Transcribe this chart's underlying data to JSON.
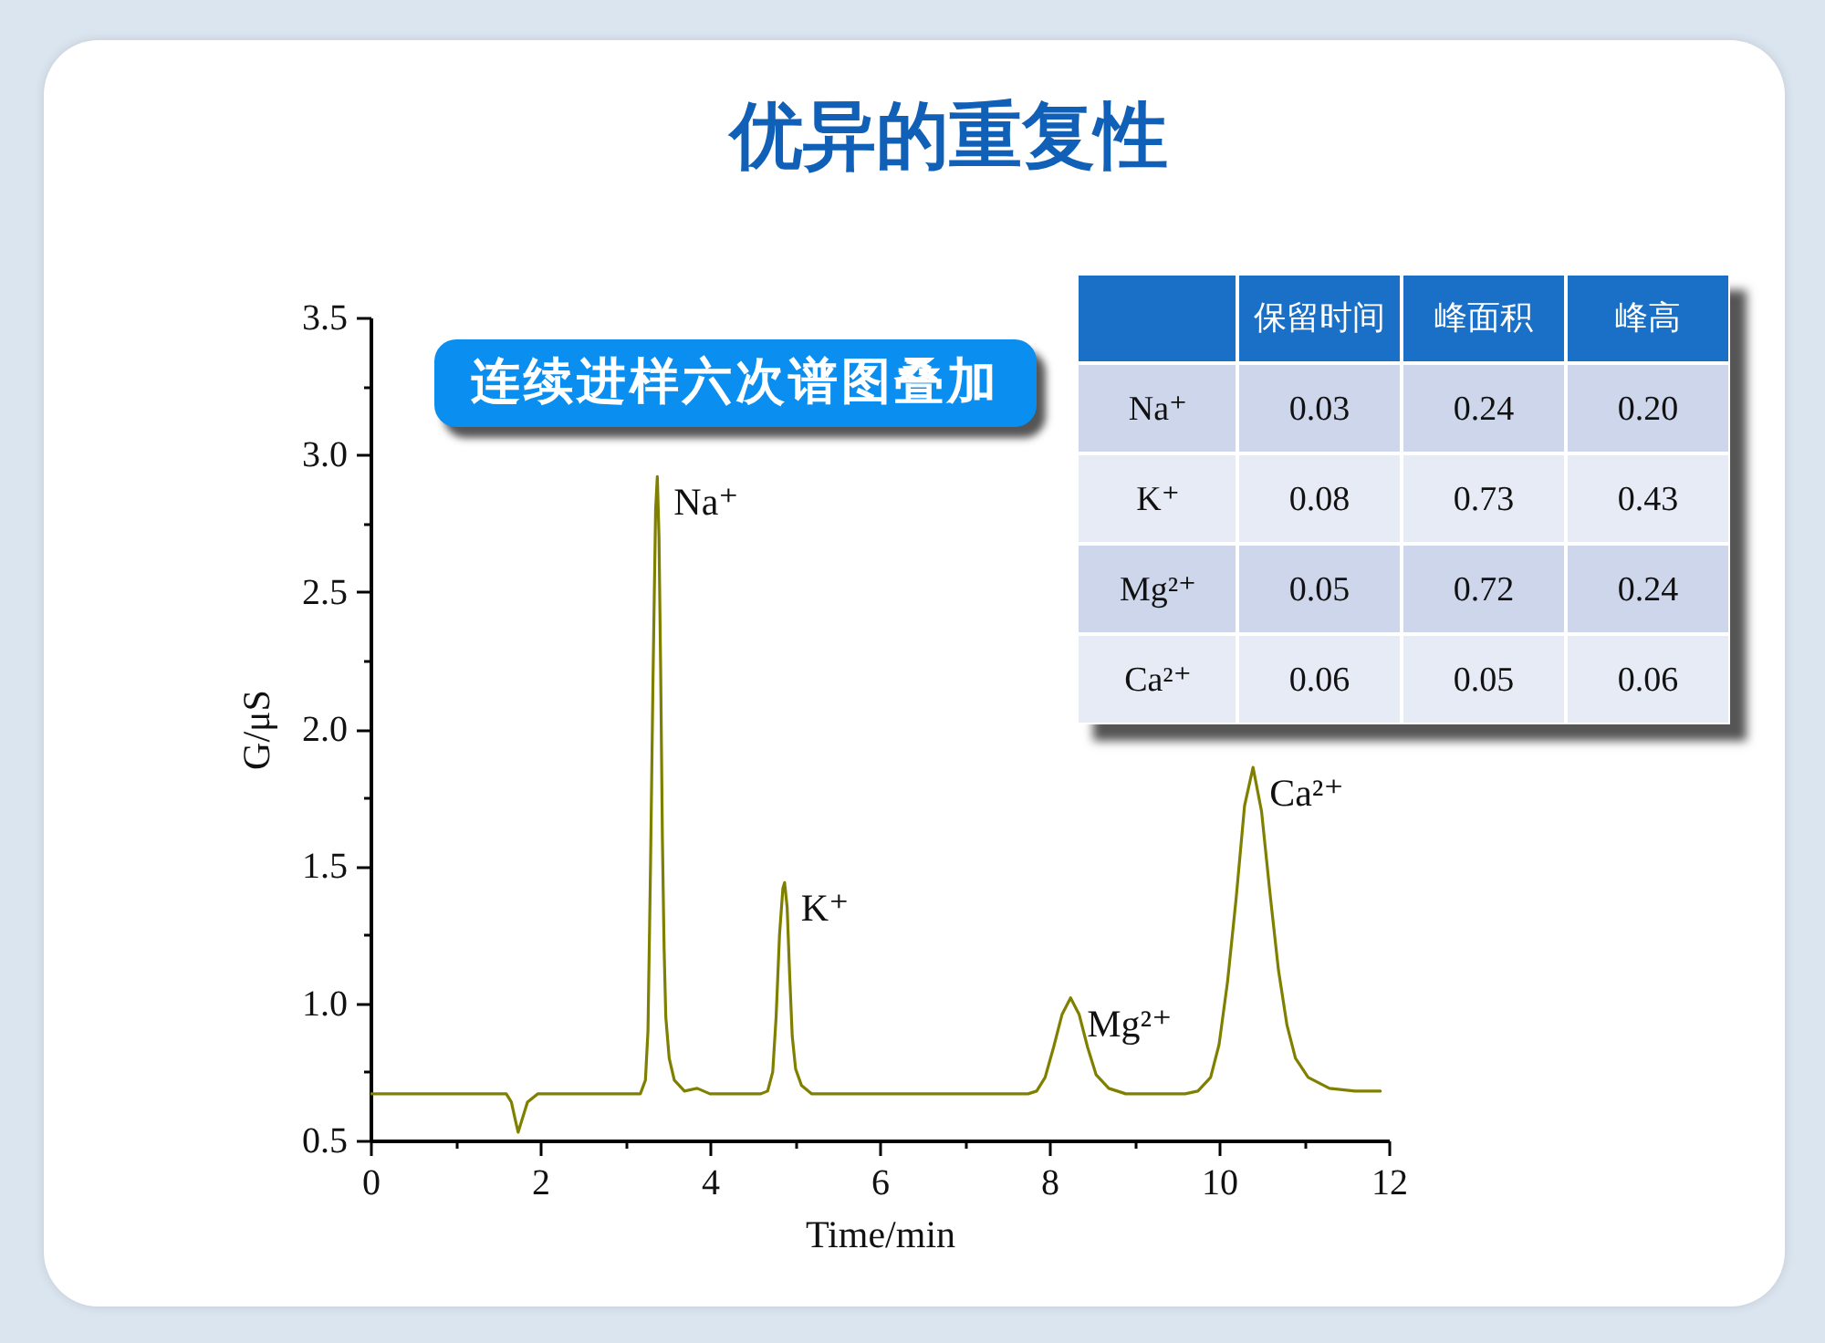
{
  "chart_data": [
    {
      "type": "line",
      "title": "优异的重复性",
      "xlabel": "Time/min",
      "ylabel": "G/μS",
      "x": [
        0,
        1.6,
        1.66,
        1.71,
        1.74,
        1.78,
        1.85,
        1.97,
        3.18,
        3.24,
        3.27,
        3.3,
        3.33,
        3.36,
        3.38,
        3.4,
        3.42,
        3.44,
        3.46,
        3.48,
        3.52,
        3.58,
        3.7,
        3.85,
        4.0,
        4.6,
        4.68,
        4.74,
        4.78,
        4.82,
        4.86,
        4.88,
        4.91,
        4.94,
        4.97,
        5.01,
        5.08,
        5.2,
        7.75,
        7.85,
        7.95,
        8.05,
        8.15,
        8.25,
        8.35,
        8.45,
        8.55,
        8.7,
        8.9,
        9.6,
        9.75,
        9.9,
        10.0,
        10.1,
        10.2,
        10.3,
        10.4,
        10.5,
        10.6,
        10.7,
        10.8,
        10.9,
        11.05,
        11.3,
        11.6,
        11.9
      ],
      "series": [
        {
          "color": "#808000",
          "values": [
            0.67,
            0.67,
            0.64,
            0.57,
            0.53,
            0.57,
            0.64,
            0.67,
            0.67,
            0.72,
            0.9,
            1.5,
            2.2,
            2.8,
            2.92,
            2.7,
            2.2,
            1.6,
            1.2,
            0.95,
            0.8,
            0.72,
            0.68,
            0.69,
            0.67,
            0.67,
            0.68,
            0.75,
            0.95,
            1.25,
            1.42,
            1.44,
            1.35,
            1.1,
            0.88,
            0.76,
            0.7,
            0.67,
            0.67,
            0.68,
            0.73,
            0.84,
            0.96,
            1.02,
            0.96,
            0.84,
            0.74,
            0.69,
            0.67,
            0.67,
            0.68,
            0.73,
            0.85,
            1.08,
            1.38,
            1.72,
            1.86,
            1.7,
            1.4,
            1.12,
            0.92,
            0.8,
            0.73,
            0.69,
            0.68,
            0.68
          ]
        }
      ],
      "xlim": [
        0,
        12
      ],
      "ylim": [
        0.5,
        3.5
      ],
      "xticks": [
        0,
        {
          "value": 1,
          "label": null
        },
        2,
        {
          "value": 3,
          "label": null
        },
        4,
        {
          "value": 5,
          "label": null
        },
        6,
        {
          "value": 7,
          "label": null
        },
        8,
        {
          "value": 9,
          "label": null
        },
        10,
        {
          "value": 11,
          "label": null
        },
        12
      ],
      "yticks": [
        0.5,
        {
          "value": 0.75,
          "label": null
        },
        {
          "value": 1,
          "label": "1.0"
        },
        {
          "value": 1.25,
          "label": null
        },
        1.5,
        {
          "value": 1.75,
          "label": null
        },
        {
          "value": 2,
          "label": "2.0"
        },
        {
          "value": 2.25,
          "label": null
        },
        2.5,
        {
          "value": 2.75,
          "label": null
        },
        {
          "value": 3,
          "label": "3.0"
        },
        {
          "value": 3.25,
          "label": null
        },
        3.5
      ],
      "annotations": [
        "连续进样六次谱图叠加",
        {
          "text": "Na⁺",
          "x": 3.38,
          "y": 2.92
        },
        {
          "text": "K⁺",
          "x": 4.88,
          "y": 1.44
        },
        {
          "text": "Mg²⁺",
          "x": 8.25,
          "y": 1.02
        },
        {
          "text": "Ca²⁺",
          "x": 10.4,
          "y": 1.86
        }
      ]
    },
    {
      "type": "heatmap",
      "categories": [
        "保留时间",
        "峰面积",
        "峰高"
      ],
      "y_categories": [
        "Na⁺",
        "K⁺",
        "Mg²⁺",
        "Ca²⁺"
      ],
      "cells": [
        [
          0.03,
          0.24,
          0.2
        ],
        [
          0.08,
          0.73,
          0.43
        ],
        [
          0.05,
          0.72,
          0.24
        ],
        [
          0.06,
          0.05,
          0.06
        ]
      ],
      "cell_labels": [
        [
          "0.03",
          "0.24",
          "0.20"
        ],
        [
          "0.08",
          "0.73",
          "0.43"
        ],
        [
          "0.05",
          "0.72",
          "0.24"
        ],
        [
          "0.06",
          "0.05",
          "0.06"
        ]
      ],
      "data_labels": true
    }
  ]
}
